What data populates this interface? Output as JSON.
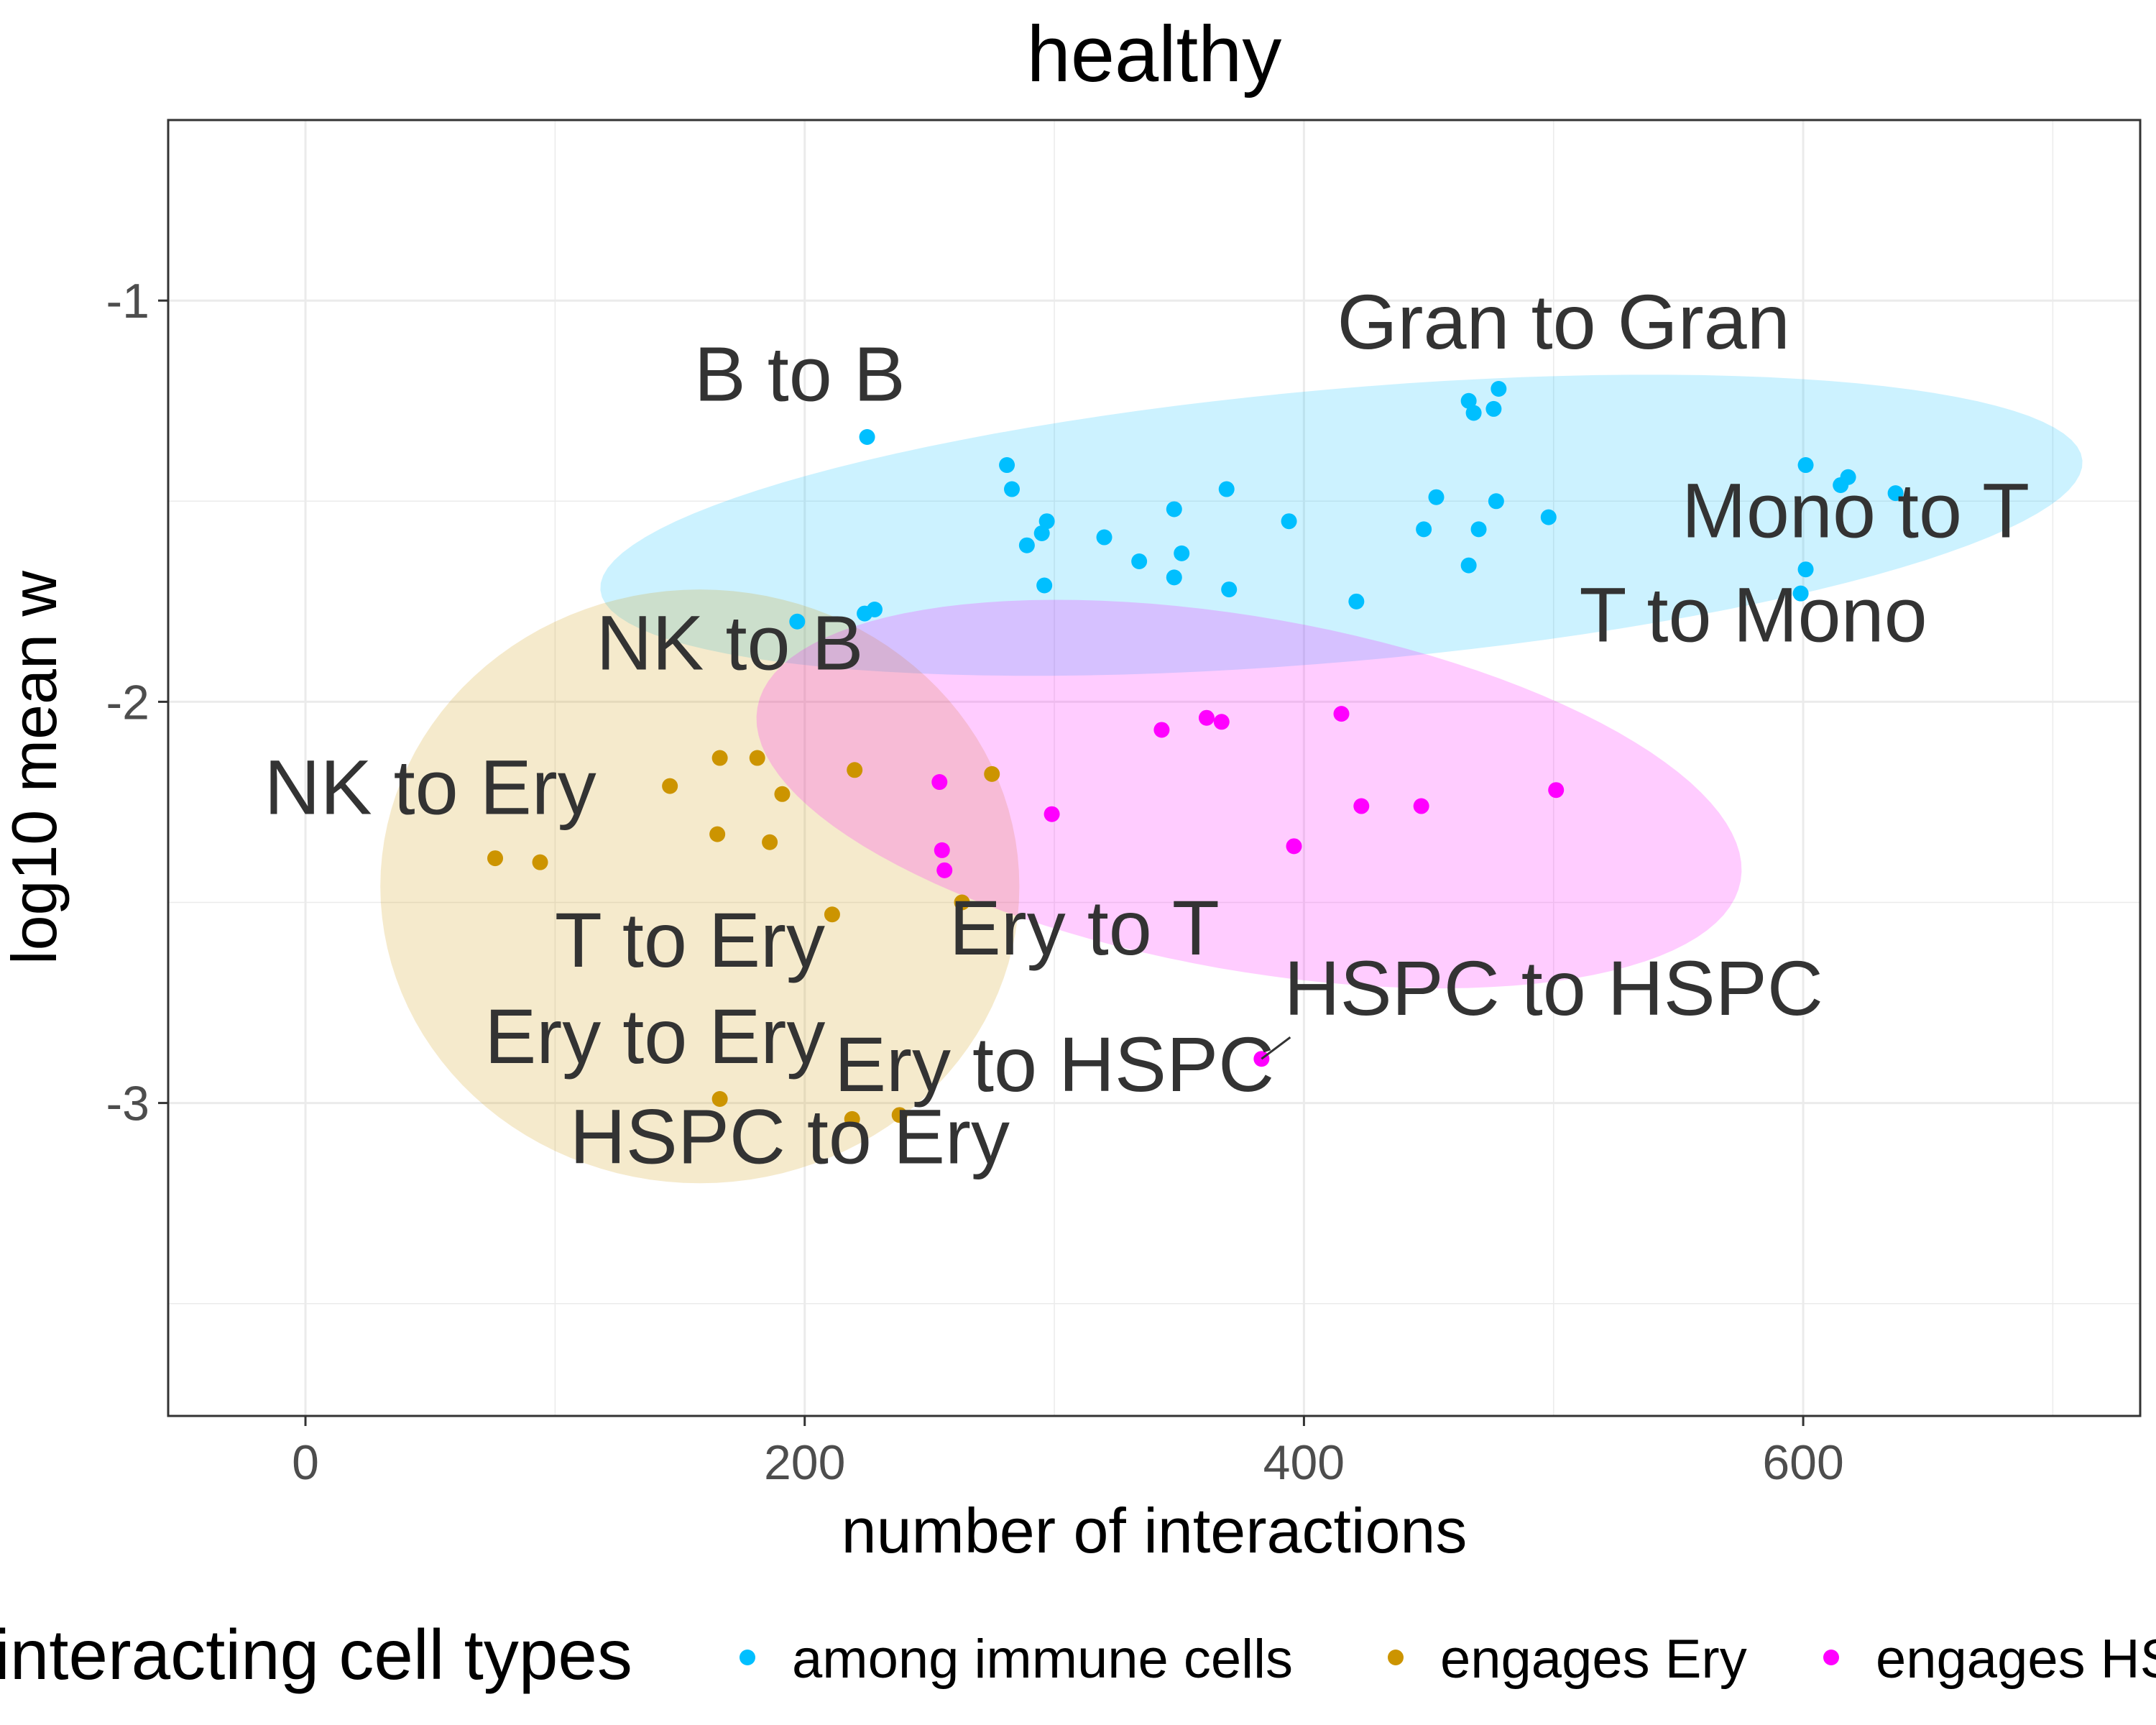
{
  "chart_data": {
    "type": "scatter",
    "title": "healthy",
    "xlabel": "number of interactions",
    "ylabel": "log10 mean w",
    "xlim": [
      -55,
      735
    ],
    "ylim": [
      -3.78,
      -0.55
    ],
    "x_ticks": [
      0,
      200,
      400,
      600
    ],
    "x_tick_labels": [
      "0",
      "200",
      "400",
      "600"
    ],
    "y_ticks": [
      -1,
      -2,
      -3
    ],
    "y_tick_labels": [
      "-1",
      "-2",
      "-3"
    ],
    "grid": true,
    "legend": {
      "position": "bottom",
      "title": "interacting cell types",
      "entries": [
        "among immune cells",
        "engages Ery",
        "engages HSPC"
      ]
    },
    "series": [
      {
        "name": "among immune cells",
        "color": "#00BFFF",
        "points": [
          [
            225,
            -1.34
          ],
          [
            281,
            -1.41
          ],
          [
            283,
            -1.47
          ],
          [
            297,
            -1.55
          ],
          [
            295,
            -1.58
          ],
          [
            289,
            -1.61
          ],
          [
            296,
            -1.71
          ],
          [
            320,
            -1.59
          ],
          [
            334,
            -1.65
          ],
          [
            348,
            -1.52
          ],
          [
            351,
            -1.63
          ],
          [
            348,
            -1.69
          ],
          [
            369,
            -1.47
          ],
          [
            370,
            -1.72
          ],
          [
            394,
            -1.55
          ],
          [
            421,
            -1.75
          ],
          [
            448,
            -1.57
          ],
          [
            453,
            -1.49
          ],
          [
            466,
            -1.66
          ],
          [
            466,
            -1.25
          ],
          [
            468,
            -1.28
          ],
          [
            470,
            -1.57
          ],
          [
            476,
            -1.27
          ],
          [
            478,
            -1.22
          ],
          [
            477,
            -1.5
          ],
          [
            498,
            -1.54
          ],
          [
            601,
            -1.41
          ],
          [
            615,
            -1.46
          ],
          [
            618,
            -1.44
          ],
          [
            637,
            -1.48
          ],
          [
            601,
            -1.67
          ],
          [
            599,
            -1.73
          ],
          [
            197,
            -1.8
          ],
          [
            224,
            -1.78
          ],
          [
            228,
            -1.77
          ]
        ]
      },
      {
        "name": "engages Ery",
        "color": "#CC9400",
        "points": [
          [
            76,
            -2.39
          ],
          [
            94,
            -2.4
          ],
          [
            146,
            -2.21
          ],
          [
            166,
            -2.14
          ],
          [
            166,
            -2.99
          ],
          [
            165,
            -2.33
          ],
          [
            181,
            -2.14
          ],
          [
            186,
            -2.35
          ],
          [
            191,
            -2.23
          ],
          [
            211,
            -2.53
          ],
          [
            220,
            -2.17
          ],
          [
            219,
            -3.04
          ],
          [
            238,
            -3.03
          ],
          [
            263,
            -2.5
          ],
          [
            275,
            -2.18
          ]
        ]
      },
      {
        "name": "engages HSPC",
        "color": "#FF00FF",
        "points": [
          [
            254,
            -2.2
          ],
          [
            255,
            -2.37
          ],
          [
            256,
            -2.42
          ],
          [
            299,
            -2.28
          ],
          [
            343,
            -2.07
          ],
          [
            361,
            -2.04
          ],
          [
            367,
            -2.05
          ],
          [
            383,
            -2.89
          ],
          [
            396,
            -2.36
          ],
          [
            415,
            -2.03
          ],
          [
            423,
            -2.26
          ],
          [
            447,
            -2.26
          ],
          [
            501,
            -2.22
          ]
        ]
      }
    ],
    "ellipses": [
      {
        "group": "among immune cells",
        "cx": 415,
        "cy": -1.56,
        "rx": 298,
        "ry": 0.34,
        "angle": 5,
        "color": "#00BFFF"
      },
      {
        "group": "engages Ery",
        "cx": 158,
        "cy": -2.46,
        "rx": 128,
        "ry": 0.74,
        "angle": 0,
        "color": "#CC9400"
      },
      {
        "group": "engages HSPC",
        "cx": 378,
        "cy": -2.23,
        "rx": 200,
        "ry": 0.44,
        "angle": -10,
        "color": "#FF00FF"
      }
    ],
    "annotations": [
      {
        "text": "B to B",
        "x": 198,
        "y": -1.25
      },
      {
        "text": "Gran to Gran",
        "x": 504,
        "y": -1.12
      },
      {
        "text": "Mono to T",
        "x": 621,
        "y": -1.59
      },
      {
        "text": "T to Mono",
        "x": 580,
        "y": -1.85
      },
      {
        "text": "NK to B",
        "x": 170,
        "y": -1.92
      },
      {
        "text": "NK to Ery",
        "x": 50,
        "y": -2.28
      },
      {
        "text": "T to Ery",
        "x": 154,
        "y": -2.66
      },
      {
        "text": "Ery to T",
        "x": 312,
        "y": -2.63
      },
      {
        "text": "HSPC to HSPC",
        "x": 500,
        "y": -2.78,
        "leader_to": [
          383,
          -2.89
        ]
      },
      {
        "text": "Ery to Ery",
        "x": 140,
        "y": -2.9
      },
      {
        "text": "Ery to HSPC",
        "x": 300,
        "y": -2.97
      },
      {
        "text": "HSPC to Ery",
        "x": 194,
        "y": -3.15
      }
    ]
  }
}
